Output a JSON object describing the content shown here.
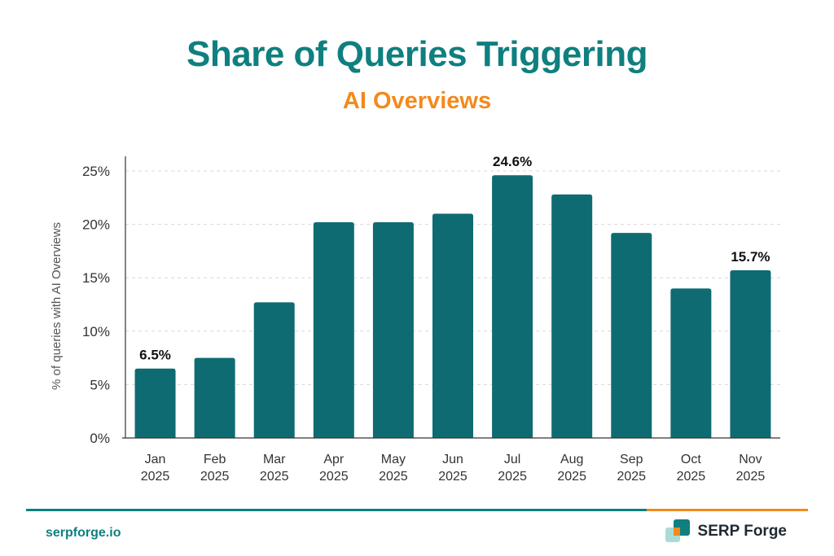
{
  "chart_data": {
    "type": "bar",
    "title": "Share of Queries Triggering",
    "subtitle": "AI Overviews",
    "xlabel": "",
    "ylabel": "% of queries with AI Overviews",
    "ylim": [
      0,
      26
    ],
    "yticks": [
      0,
      5,
      10,
      15,
      20,
      25
    ],
    "ytick_labels": [
      "0%",
      "5%",
      "10%",
      "15%",
      "20%",
      "25%"
    ],
    "grid": true,
    "categories": [
      [
        "Jan",
        "2025"
      ],
      [
        "Feb",
        "2025"
      ],
      [
        "Mar",
        "2025"
      ],
      [
        "Apr",
        "2025"
      ],
      [
        "May",
        "2025"
      ],
      [
        "Jun",
        "2025"
      ],
      [
        "Jul",
        "2025"
      ],
      [
        "Aug",
        "2025"
      ],
      [
        "Sep",
        "2025"
      ],
      [
        "Oct",
        "2025"
      ],
      [
        "Nov",
        "2025"
      ]
    ],
    "values": [
      6.5,
      7.5,
      12.7,
      20.2,
      20.2,
      21.0,
      24.6,
      22.8,
      19.2,
      14.0,
      15.7
    ],
    "data_labels": [
      {
        "index": 0,
        "text": "6.5%"
      },
      {
        "index": 6,
        "text": "24.6%"
      },
      {
        "index": 10,
        "text": "15.7%"
      }
    ],
    "bar_color": "#0f6b72"
  },
  "footer": {
    "site": "serpforge.io",
    "brand": "SERP Forge"
  },
  "colors": {
    "accent": "#0f7f7f",
    "highlight": "#f28a1c"
  }
}
